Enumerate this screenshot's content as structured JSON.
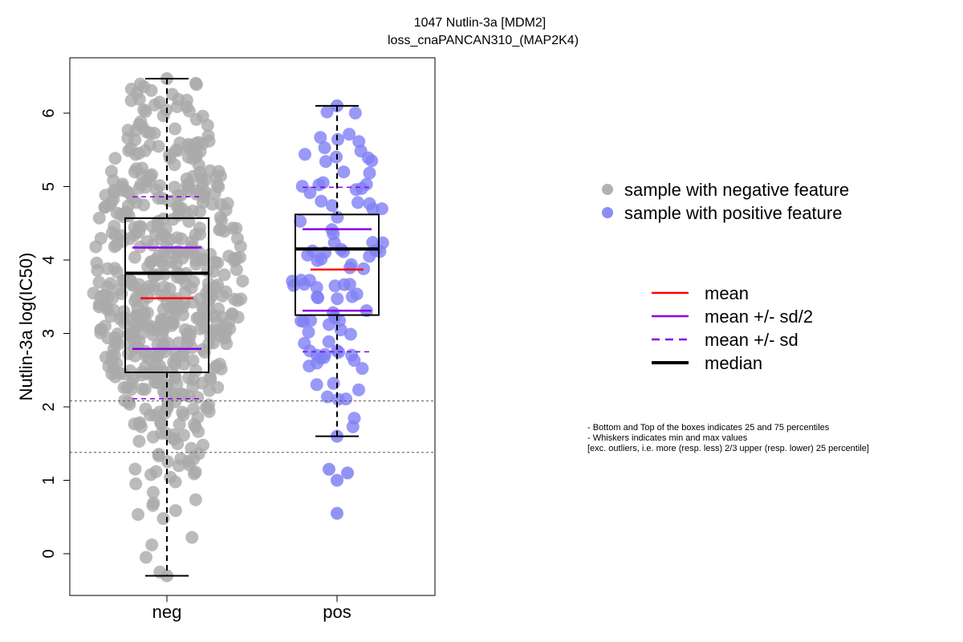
{
  "chart_data": {
    "type": "box",
    "title": "1047 Nutlin-3a [MDM2]",
    "subtitle": "loss_cnaPANCAN310_(MAP2K4)",
    "ylabel": "Nutlin-3a log(IC50)",
    "xlabel": "",
    "categories": [
      "neg",
      "pos"
    ],
    "ylim": [
      -0.55,
      6.75
    ],
    "yticks": [
      0,
      1,
      2,
      3,
      4,
      5,
      6
    ],
    "hlines": [
      2.08,
      1.38
    ],
    "groups": [
      {
        "name": "neg",
        "color": "#aaaaaa",
        "min": -0.3,
        "q1": 2.47,
        "median": 3.82,
        "q3": 4.57,
        "max": 6.47,
        "mean": 3.48,
        "mean_minus_sd2": 2.79,
        "mean_plus_sd2": 4.17,
        "mean_minus_sd": 2.11,
        "mean_plus_sd": 4.86
      },
      {
        "name": "pos",
        "color": "#8080f5",
        "min": 1.6,
        "q1": 3.25,
        "median": 4.15,
        "q3": 4.62,
        "max": 6.1,
        "mean": 3.87,
        "mean_minus_sd2": 3.31,
        "mean_plus_sd2": 4.42,
        "mean_minus_sd": 2.75,
        "mean_plus_sd": 4.99
      }
    ],
    "legend_points": [
      {
        "label": "sample with negative feature",
        "color": "#aaaaaa"
      },
      {
        "label": "sample with positive feature",
        "color": "#8080f5"
      }
    ],
    "legend_lines": [
      {
        "label": "mean",
        "color": "#ff0000",
        "style": "solid"
      },
      {
        "label": "mean +/- sd/2",
        "color": "#8a00e6",
        "style": "solid"
      },
      {
        "label": "mean +/- sd",
        "color": "#8a00e6",
        "style": "dashed"
      },
      {
        "label": "median",
        "color": "#000000",
        "style": "solid-thick"
      }
    ],
    "notes": [
      "- Bottom and Top of the boxes indicates 25 and 75 percentiles",
      "- Whiskers indicates min and max values",
      "[exc. outliers, i.e. more (resp. less) 2/3 upper (resp. lower) 25 percentile]"
    ]
  }
}
